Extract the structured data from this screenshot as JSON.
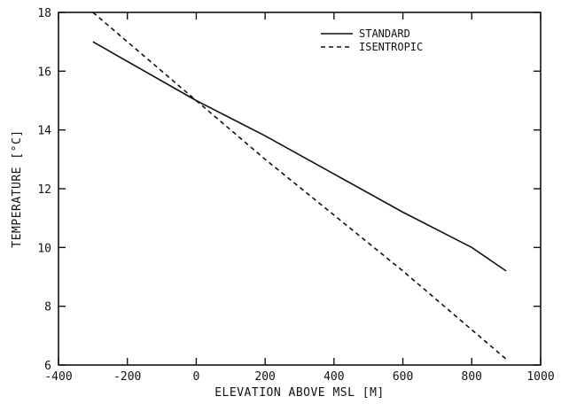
{
  "chart_data": {
    "type": "line",
    "xlabel": "ELEVATION ABOVE MSL [M]",
    "ylabel": "TEMPERATURE [°C]",
    "xlim": [
      -400,
      1000
    ],
    "ylim": [
      6,
      18
    ],
    "x_ticks": [
      -400,
      -200,
      0,
      200,
      400,
      600,
      800,
      1000
    ],
    "y_ticks": [
      6,
      8,
      10,
      12,
      14,
      16,
      18
    ],
    "grid": false,
    "legend_position": "top-right",
    "series": [
      {
        "name": "STANDARD",
        "style": "solid",
        "x": [
          -300,
          0,
          200,
          400,
          600,
          800,
          900
        ],
        "y": [
          17.0,
          15.0,
          13.8,
          12.5,
          11.2,
          10.0,
          9.2
        ]
      },
      {
        "name": "ISENTROPIC",
        "style": "dashed",
        "x": [
          -300,
          0,
          200,
          400,
          600,
          800,
          900
        ],
        "y": [
          18.0,
          15.0,
          13.0,
          11.1,
          9.2,
          7.2,
          6.2
        ]
      }
    ],
    "color": "#111111"
  }
}
